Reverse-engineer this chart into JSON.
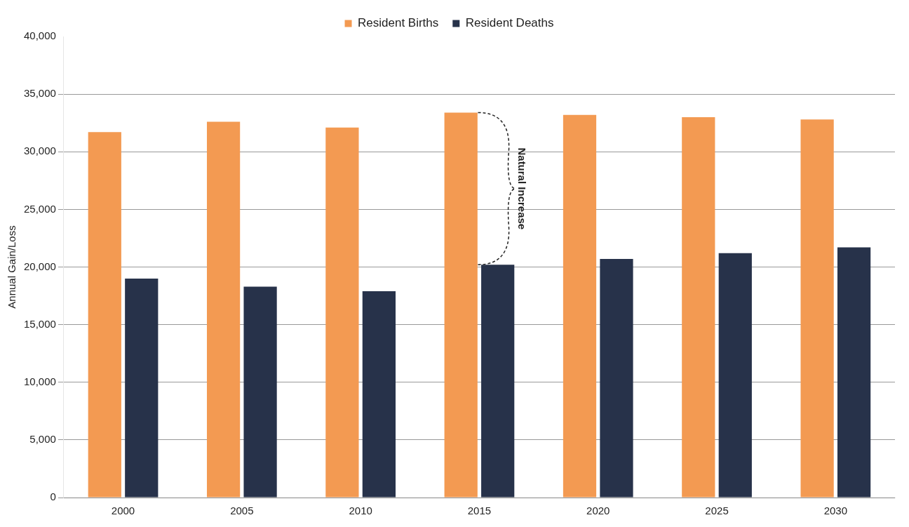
{
  "chart_data": {
    "type": "bar",
    "ylabel": "Annual Gain/Loss",
    "categories": [
      "2000",
      "2005",
      "2010",
      "2015",
      "2020",
      "2025",
      "2030"
    ],
    "series": [
      {
        "name": "Resident Births",
        "color": "#f39a52",
        "values": [
          31700,
          32600,
          32100,
          33400,
          33200,
          33000,
          32800
        ]
      },
      {
        "name": "Resident Deaths",
        "color": "#27324a",
        "values": [
          19000,
          18300,
          17900,
          20200,
          20700,
          21200,
          21700
        ]
      }
    ],
    "ylim": [
      0,
      40000
    ],
    "yticks": [
      {
        "value": 0,
        "label": "0"
      },
      {
        "value": 5000,
        "label": "5,000"
      },
      {
        "value": 10000,
        "label": "10,000"
      },
      {
        "value": 15000,
        "label": "15,000"
      },
      {
        "value": 20000,
        "label": "20,000"
      },
      {
        "value": 25000,
        "label": "25,000"
      },
      {
        "value": 30000,
        "label": "30,000"
      },
      {
        "value": 35000,
        "label": "35,000"
      },
      {
        "value": 40000,
        "label": "40,000"
      }
    ],
    "grid": "y",
    "legend": "top",
    "annotations": [
      {
        "text": "Natural Increase",
        "x": "2015",
        "y": 33400
      }
    ]
  }
}
